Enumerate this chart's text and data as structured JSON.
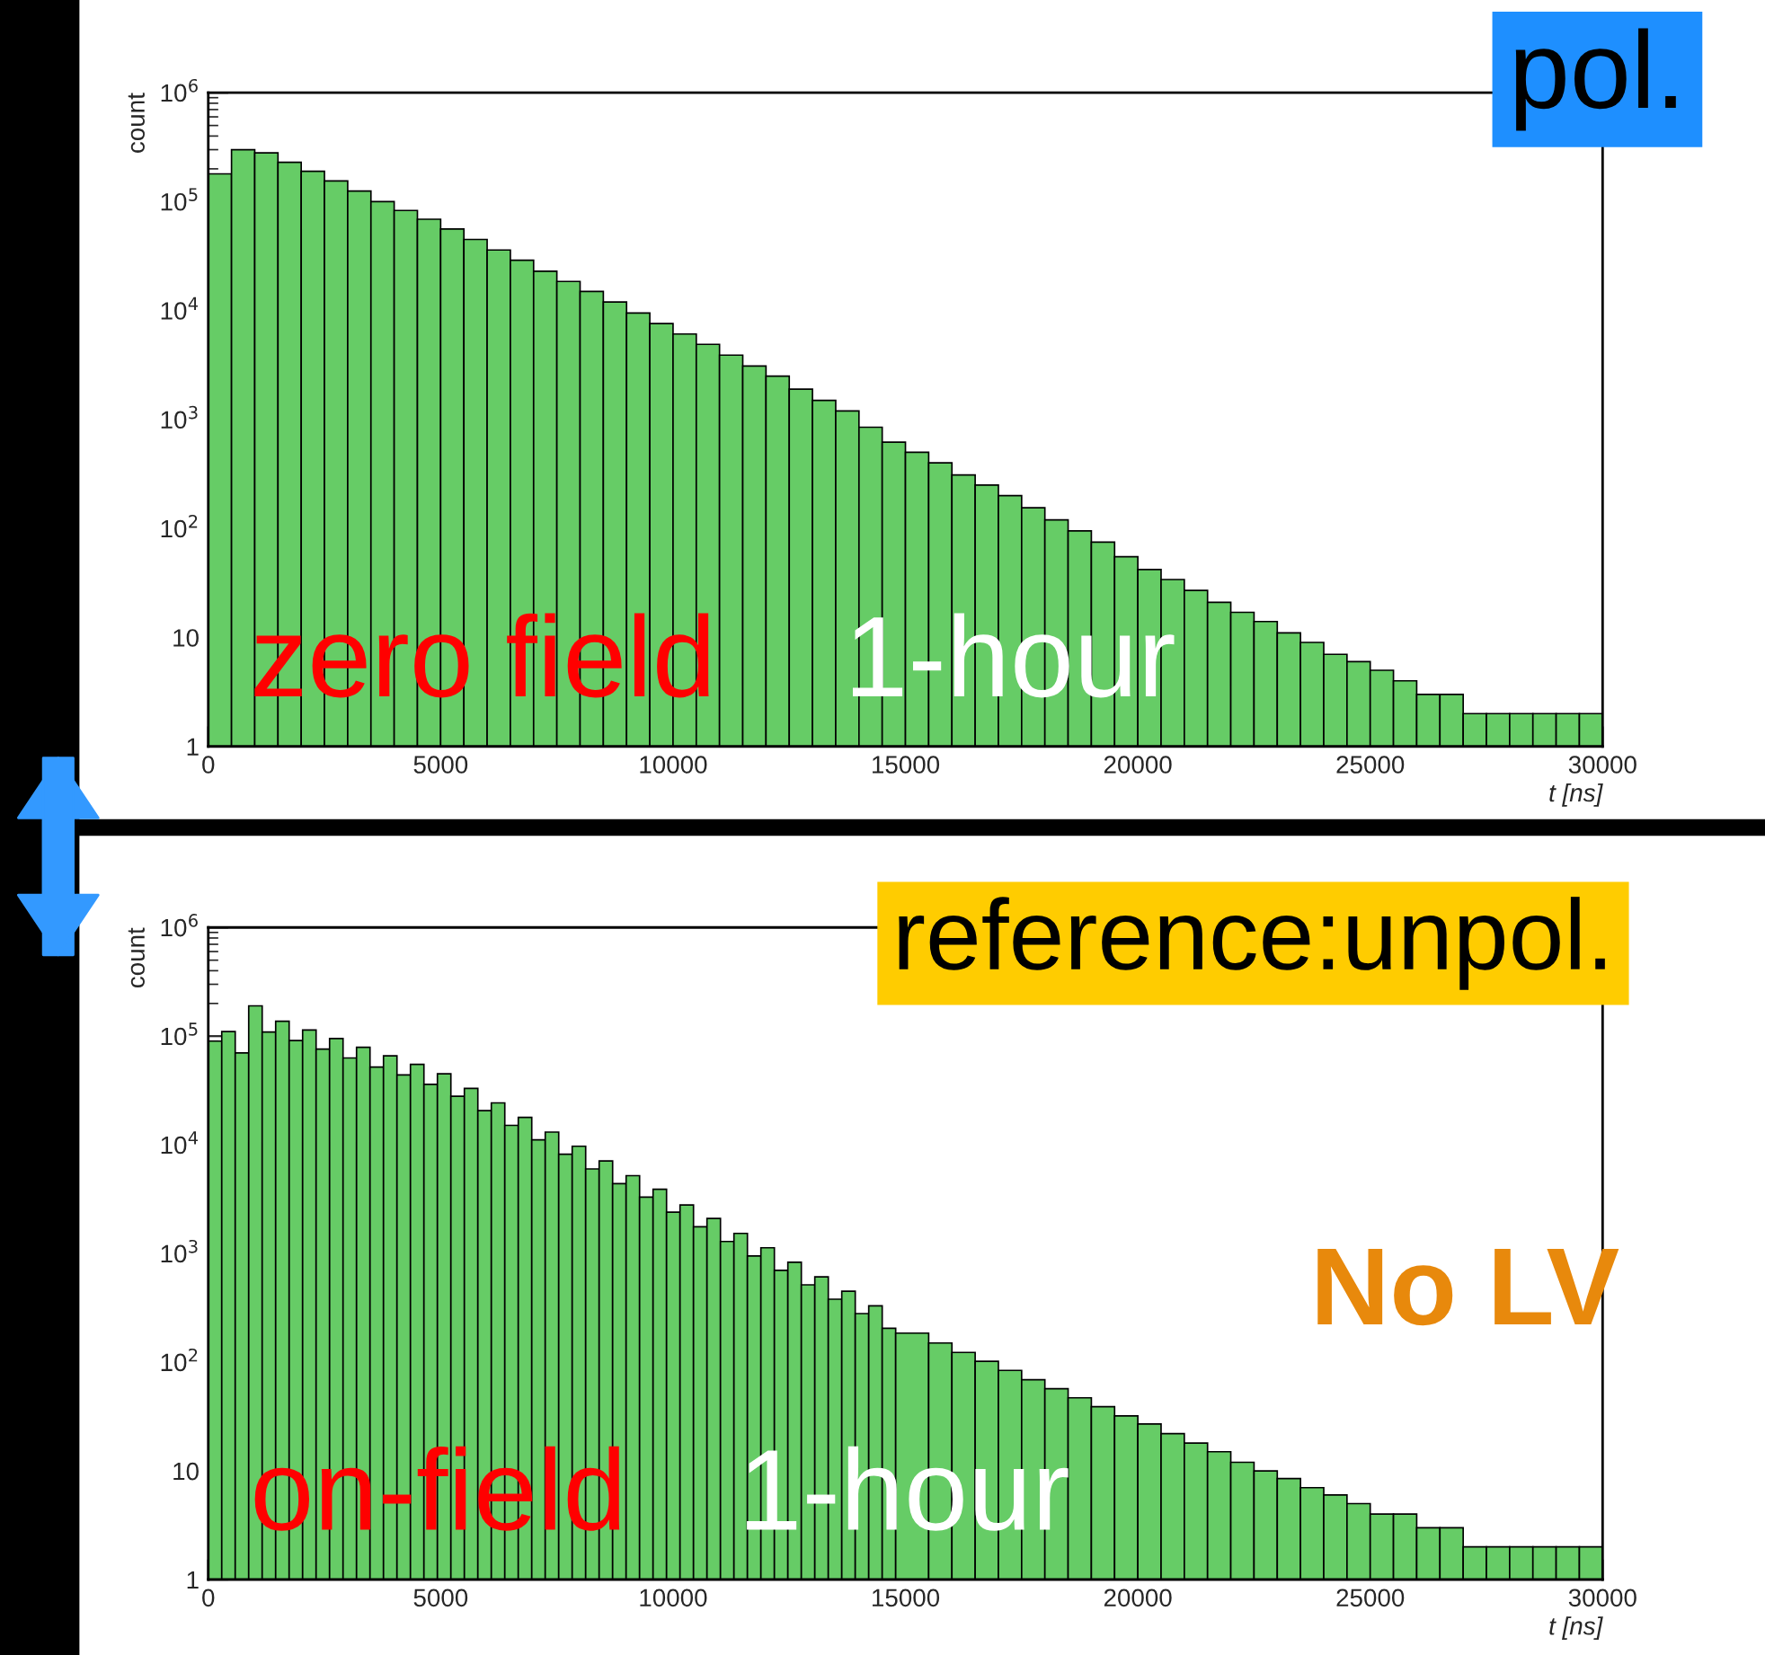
{
  "chart_data": [
    {
      "type": "histogram",
      "color": "#66cc66",
      "log": true,
      "xlabel": "t [ns]",
      "ylabel": "count",
      "xlim": [
        0,
        30000
      ],
      "xticks": [
        0,
        5000,
        10000,
        15000,
        20000,
        25000,
        30000
      ],
      "ylim": [
        1,
        1000000
      ],
      "yticks": [
        1,
        10,
        {
          "value": 100,
          "label": "10$^{2}$"
        },
        {
          "value": 1000,
          "label": "10$^{3}$"
        },
        {
          "value": 10000,
          "label": "10$^{4}$"
        },
        {
          "value": 100000,
          "label": "10$^{5}$"
        },
        {
          "value": 1000000,
          "label": "10$^{6}$"
        }
      ],
      "bins": [
        0,
        500,
        1000,
        1500,
        2000,
        2500,
        3000,
        3500,
        4000,
        4500,
        5000,
        5500,
        6000,
        6500,
        7000,
        7500,
        8000,
        8500,
        9000,
        9500,
        10000,
        10500,
        11000,
        11500,
        12000,
        12500,
        13000,
        13500,
        14000,
        14500,
        15000,
        15500,
        16000,
        16500,
        17000,
        17500,
        18000,
        18500,
        19000,
        19500,
        20000,
        20500,
        21000,
        21500,
        22000,
        22500,
        23000,
        23500,
        24000,
        24500,
        25000,
        25500,
        26000,
        26500,
        27000,
        27500,
        28000,
        28500,
        29000,
        29500,
        30000
      ],
      "values": [
        180000,
        300000,
        280000,
        230000,
        190000,
        155000,
        125000,
        100000,
        83000,
        69000,
        56000,
        45000,
        36000,
        29000,
        23000,
        18500,
        15000,
        12000,
        9500,
        7600,
        6100,
        4900,
        3900,
        3100,
        2500,
        1900,
        1500,
        1200,
        850,
        620,
        500,
        400,
        310,
        250,
        200,
        155,
        120,
        95,
        75,
        55,
        42,
        34,
        27,
        21,
        17,
        14,
        11,
        9,
        7,
        6,
        5,
        4,
        3,
        3,
        2,
        2,
        2,
        2,
        2,
        2
      ],
      "annotations": [
        "zero field",
        "1-hour",
        "pol."
      ]
    },
    {
      "type": "histogram",
      "color": "#66cc66",
      "log": true,
      "xlabel": "t [ns]",
      "ylabel": "count",
      "xlim": [
        0,
        30000
      ],
      "xticks": [
        0,
        5000,
        10000,
        15000,
        20000,
        25000,
        30000
      ],
      "ylim": [
        1,
        1000000
      ],
      "yticks": [
        1,
        10,
        {
          "value": 100,
          "label": "10$^{2}$"
        },
        {
          "value": 1000,
          "label": "10$^{3}$"
        },
        {
          "value": 10000,
          "label": "10$^{4}$"
        },
        {
          "value": 100000,
          "label": "10$^{5}$"
        },
        {
          "value": 1000000,
          "label": "10$^{6}$"
        }
      ],
      "bins": [
        0,
        290,
        580,
        870,
        1160,
        1450,
        1740,
        2030,
        2320,
        2610,
        2900,
        3190,
        3480,
        3770,
        4060,
        4350,
        4640,
        4930,
        5220,
        5510,
        5800,
        6090,
        6380,
        6670,
        6960,
        7250,
        7540,
        7830,
        8120,
        8410,
        8700,
        8990,
        9280,
        9570,
        9860,
        10150,
        10440,
        10730,
        11020,
        11310,
        11600,
        11890,
        12180,
        12470,
        12760,
        13050,
        13340,
        13630,
        13920,
        14210,
        14500,
        14790,
        15500,
        16000,
        16500,
        17000,
        17500,
        18000,
        18500,
        19000,
        19500,
        20000,
        20500,
        21000,
        21500,
        22000,
        22500,
        23000,
        23500,
        24000,
        24500,
        25000,
        25500,
        26000,
        26500,
        27000,
        27500,
        28000,
        28500,
        29000,
        29500,
        30000
      ],
      "values": [
        90000,
        110000,
        70000,
        190000,
        109000,
        137000,
        91000,
        114000,
        76000,
        95000,
        63000,
        79000,
        52000,
        66000,
        44000,
        55000,
        36000,
        45000,
        28000,
        33000,
        20600,
        24300,
        15100,
        17900,
        11100,
        13100,
        8200,
        9700,
        6000,
        7100,
        4400,
        5200,
        3300,
        3900,
        2400,
        2800,
        1760,
        2100,
        1290,
        1530,
        950,
        1130,
        700,
        830,
        515,
        610,
        380,
        450,
        280,
        330,
        205,
        185,
        150,
        123,
        102,
        84,
        69,
        57,
        47,
        39,
        32,
        27,
        22,
        18,
        15,
        12,
        10,
        8.5,
        7,
        6,
        5,
        4,
        4,
        3,
        3,
        2,
        2,
        2,
        2,
        2,
        2
      ],
      "annotations": [
        "on-field",
        "1-hour",
        "reference:unpol.",
        "No LV"
      ]
    }
  ]
}
